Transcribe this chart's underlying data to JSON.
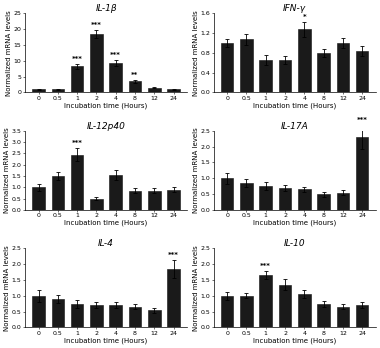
{
  "subplots": [
    {
      "title": "IL-1β",
      "x_labels": [
        "0",
        "0.5",
        "1",
        "2",
        "4",
        "8",
        "12",
        "24"
      ],
      "values": [
        1.0,
        1.0,
        8.2,
        18.5,
        9.2,
        3.5,
        1.5,
        1.0
      ],
      "errors": [
        0.2,
        0.15,
        0.8,
        1.2,
        1.0,
        0.4,
        0.25,
        0.15
      ],
      "significance": [
        "",
        "",
        "***",
        "***",
        "***",
        "**",
        "",
        ""
      ],
      "ylim": [
        0,
        25
      ],
      "yticks": [
        0,
        5,
        10,
        15,
        20,
        25
      ]
    },
    {
      "title": "IFN-γ",
      "x_labels": [
        "0",
        "0.5",
        "1",
        "2",
        "4",
        "8",
        "12",
        "24"
      ],
      "values": [
        1.0,
        1.07,
        0.65,
        0.65,
        1.28,
        0.8,
        1.0,
        0.83
      ],
      "errors": [
        0.08,
        0.12,
        0.1,
        0.08,
        0.15,
        0.08,
        0.1,
        0.1
      ],
      "significance": [
        "",
        "",
        "",
        "",
        "*",
        "",
        "",
        ""
      ],
      "ylim": [
        0,
        1.6
      ],
      "yticks": [
        0.0,
        0.4,
        0.8,
        1.2,
        1.6
      ]
    },
    {
      "title": "IL-12p40",
      "x_labels": [
        "0",
        "0.5",
        "1",
        "2",
        "4",
        "8",
        "12",
        "24"
      ],
      "values": [
        1.0,
        1.5,
        2.45,
        0.5,
        1.55,
        0.85,
        0.85,
        0.9
      ],
      "errors": [
        0.15,
        0.18,
        0.28,
        0.08,
        0.22,
        0.12,
        0.1,
        0.12
      ],
      "significance": [
        "",
        "",
        "***",
        "",
        "",
        "",
        "",
        ""
      ],
      "ylim": [
        0,
        3.5
      ],
      "yticks": [
        0.0,
        0.5,
        1.0,
        1.5,
        2.0,
        2.5,
        3.0,
        3.5
      ]
    },
    {
      "title": "IL-17A",
      "x_labels": [
        "0",
        "0.5",
        "1",
        "2",
        "4",
        "8",
        "12",
        "24"
      ],
      "values": [
        1.0,
        0.85,
        0.75,
        0.7,
        0.65,
        0.5,
        0.55,
        2.3
      ],
      "errors": [
        0.18,
        0.13,
        0.13,
        0.1,
        0.08,
        0.08,
        0.08,
        0.38
      ],
      "significance": [
        "",
        "",
        "",
        "",
        "",
        "",
        "",
        "***"
      ],
      "ylim": [
        0,
        2.5
      ],
      "yticks": [
        0.0,
        0.5,
        1.0,
        1.5,
        2.0,
        2.5
      ]
    },
    {
      "title": "IL-4",
      "x_labels": [
        "0",
        "0.5",
        "1",
        "2",
        "4",
        "8",
        "12",
        "24"
      ],
      "values": [
        1.0,
        0.9,
        0.75,
        0.7,
        0.7,
        0.65,
        0.55,
        1.85
      ],
      "errors": [
        0.18,
        0.13,
        0.13,
        0.1,
        0.1,
        0.08,
        0.08,
        0.28
      ],
      "significance": [
        "",
        "",
        "",
        "",
        "",
        "",
        "",
        "***"
      ],
      "ylim": [
        0,
        2.5
      ],
      "yticks": [
        0.0,
        0.5,
        1.0,
        1.5,
        2.0,
        2.5
      ]
    },
    {
      "title": "IL-10",
      "x_labels": [
        "0",
        "0.5",
        "1",
        "2",
        "4",
        "8",
        "12",
        "24"
      ],
      "values": [
        1.0,
        1.0,
        1.65,
        1.35,
        1.05,
        0.75,
        0.65,
        0.7
      ],
      "errors": [
        0.12,
        0.08,
        0.13,
        0.18,
        0.12,
        0.1,
        0.08,
        0.1
      ],
      "significance": [
        "",
        "",
        "***",
        "",
        "",
        "",
        "",
        ""
      ],
      "ylim": [
        0,
        2.5
      ],
      "yticks": [
        0.0,
        0.5,
        1.0,
        1.5,
        2.0,
        2.5
      ]
    }
  ],
  "bar_color": "#1a1a1a",
  "bar_edge_color": "#111111",
  "ylabel": "Normalized mRNA levels",
  "xlabel": "Incubation time (Hours)",
  "title_fontsize": 6.5,
  "label_fontsize": 5.0,
  "tick_fontsize": 4.5,
  "sig_fontsize": 5.0,
  "bar_width": 0.65,
  "background_color": "#ffffff"
}
